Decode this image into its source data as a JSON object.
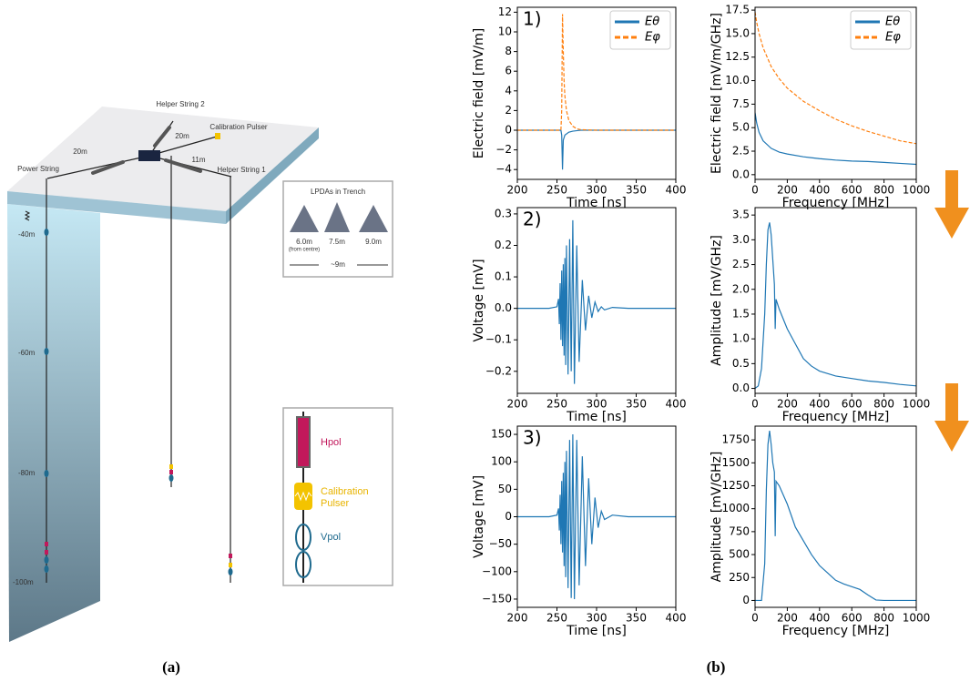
{
  "diagram": {
    "surface_labels": [
      "Helper String 2",
      "Calibration Pulser",
      "20m",
      "20m",
      "11m",
      "Power String",
      "Helper String 1"
    ],
    "depths": [
      "-40m",
      "-60m",
      "-80m",
      "-100m"
    ],
    "lpda_box": {
      "title": "LPDAs in Trench",
      "distances": [
        "6.0m",
        "7.5m",
        "9.0m"
      ],
      "note": "(from centre)",
      "span": "~9m"
    },
    "legend": [
      "Hpol",
      "Calibration",
      "Pulser",
      "Vpol"
    ]
  },
  "captions": [
    "(a)",
    "(b)"
  ],
  "chart_data": [
    {
      "type": "line",
      "annotation": "1)",
      "xlabel": "Time [ns]",
      "ylabel": "Electric field [mV/m]",
      "xlim": [
        200,
        400
      ],
      "xticks": [
        200,
        250,
        300,
        350,
        400
      ],
      "ylim": [
        -5,
        12.5
      ],
      "yticks": [
        {
          "value": -4,
          "label": "−4"
        },
        {
          "value": -2,
          "label": "−2"
        },
        0,
        2,
        4,
        6,
        8,
        10,
        12
      ],
      "legend": "upper right",
      "series": [
        {
          "name": "Eθ",
          "color": "#1f77b4",
          "style": "solid",
          "x": [
            200,
            250,
            255,
            256,
            257,
            258,
            260,
            265,
            270,
            280,
            300,
            400
          ],
          "values": [
            0,
            0,
            0,
            -0.5,
            -4,
            -1,
            -0.5,
            -0.2,
            -0.1,
            0,
            0,
            0
          ]
        },
        {
          "name": "Eφ",
          "color": "#ff7f0e",
          "style": "dashed",
          "x": [
            200,
            250,
            255,
            256,
            257,
            258,
            259,
            260,
            262,
            265,
            270,
            275,
            280,
            300,
            400
          ],
          "values": [
            0,
            0,
            0,
            2,
            11.8,
            8,
            5,
            3.5,
            2,
            1,
            0.4,
            0.15,
            0.05,
            0,
            0
          ]
        }
      ]
    },
    {
      "type": "line",
      "xlabel": "Frequency [MHz]",
      "ylabel": "Electric field [mV/m/GHz]",
      "xlim": [
        0,
        1000
      ],
      "xticks": [
        0,
        200,
        400,
        600,
        800,
        1000
      ],
      "ylim": [
        -0.5,
        17.8
      ],
      "yticks": [
        {
          "value": 0,
          "label": "0.0"
        },
        2.5,
        {
          "value": 5,
          "label": "5.0"
        },
        7.5,
        {
          "value": 10,
          "label": "10.0"
        },
        12.5,
        {
          "value": 15,
          "label": "15.0"
        },
        17.5
      ],
      "legend": "upper right",
      "series": [
        {
          "name": "Eθ",
          "color": "#1f77b4",
          "style": "solid",
          "x": [
            0,
            10,
            25,
            50,
            100,
            150,
            200,
            300,
            400,
            500,
            600,
            700,
            800,
            900,
            1000
          ],
          "values": [
            6.6,
            5.5,
            4.5,
            3.6,
            2.8,
            2.4,
            2.2,
            1.9,
            1.7,
            1.55,
            1.45,
            1.4,
            1.3,
            1.2,
            1.1
          ]
        },
        {
          "name": "Eφ",
          "color": "#ff7f0e",
          "style": "dashed",
          "x": [
            0,
            10,
            25,
            50,
            100,
            150,
            200,
            300,
            400,
            500,
            600,
            700,
            800,
            900,
            1000
          ],
          "values": [
            17.3,
            16.2,
            15,
            13.5,
            11.5,
            10.2,
            9.2,
            7.8,
            6.8,
            5.9,
            5.2,
            4.6,
            4.1,
            3.6,
            3.3
          ]
        }
      ]
    },
    {
      "type": "line",
      "annotation": "2)",
      "xlabel": "Time [ns]",
      "ylabel": "Voltage [mV]",
      "xlim": [
        200,
        400
      ],
      "xticks": [
        200,
        250,
        300,
        350,
        400
      ],
      "ylim": [
        -0.27,
        0.32
      ],
      "yticks": [
        {
          "value": -0.2,
          "label": "−0.2"
        },
        {
          "value": -0.1,
          "label": "−0.1"
        },
        {
          "value": 0,
          "label": "0.0"
        },
        0.1,
        0.2,
        0.3
      ],
      "series": [
        {
          "color": "#1f77b4",
          "style": "solid",
          "x": [
            200,
            240,
            250,
            252,
            253,
            254,
            255,
            256,
            257,
            258,
            259,
            260,
            261,
            262,
            264,
            266,
            268,
            270,
            272,
            275,
            278,
            282,
            286,
            290,
            294,
            298,
            302,
            306,
            310,
            320,
            340,
            400
          ],
          "values": [
            0,
            0,
            0.005,
            0.03,
            -0.05,
            0.08,
            -0.1,
            0.12,
            -0.12,
            0.14,
            -0.15,
            0.16,
            -0.18,
            0.2,
            -0.21,
            0.22,
            -0.2,
            0.28,
            -0.24,
            0.2,
            -0.17,
            0.09,
            -0.07,
            0.04,
            -0.03,
            0.02,
            -0.01,
            0.005,
            -0.005,
            0.003,
            0,
            0
          ]
        }
      ]
    },
    {
      "type": "line",
      "xlabel": "Frequency [MHz]",
      "ylabel": "Amplitude [mV/GHz]",
      "xlim": [
        0,
        1000
      ],
      "xticks": [
        0,
        200,
        400,
        600,
        800,
        1000
      ],
      "ylim": [
        -0.1,
        3.65
      ],
      "yticks": [
        {
          "value": 0,
          "label": "0.0"
        },
        0.5,
        {
          "value": 1,
          "label": "1.0"
        },
        1.5,
        {
          "value": 2,
          "label": "2.0"
        },
        2.5,
        {
          "value": 3,
          "label": "3.0"
        },
        3.5
      ],
      "series": [
        {
          "color": "#1f77b4",
          "style": "solid",
          "x": [
            0,
            20,
            40,
            60,
            70,
            80,
            90,
            100,
            110,
            120,
            125,
            130,
            150,
            200,
            250,
            300,
            350,
            400,
            500,
            600,
            700,
            800,
            900,
            1000
          ],
          "values": [
            0,
            0.05,
            0.4,
            1.5,
            2.5,
            3.2,
            3.35,
            3.1,
            2.6,
            2.1,
            1.2,
            1.8,
            1.6,
            1.2,
            0.9,
            0.6,
            0.45,
            0.35,
            0.25,
            0.2,
            0.15,
            0.12,
            0.08,
            0.05
          ]
        }
      ]
    },
    {
      "type": "line",
      "annotation": "3)",
      "xlabel": "Time [ns]",
      "ylabel": "Voltage [mV]",
      "xlim": [
        200,
        400
      ],
      "xticks": [
        200,
        250,
        300,
        350,
        400
      ],
      "ylim": [
        -165,
        165
      ],
      "yticks": [
        {
          "value": -150,
          "label": "−150"
        },
        {
          "value": -100,
          "label": "−100"
        },
        {
          "value": -50,
          "label": "−50"
        },
        0,
        50,
        100,
        150
      ],
      "series": [
        {
          "color": "#1f77b4",
          "style": "solid",
          "x": [
            200,
            240,
            250,
            252,
            253,
            254,
            255,
            256,
            257,
            258,
            259,
            260,
            261,
            262,
            264,
            266,
            268,
            270,
            272,
            275,
            278,
            282,
            286,
            290,
            294,
            298,
            302,
            306,
            310,
            320,
            340,
            400
          ],
          "values": [
            0,
            0,
            3,
            15,
            -25,
            40,
            -50,
            65,
            -65,
            80,
            -90,
            100,
            -110,
            120,
            -130,
            140,
            -148,
            150,
            -150,
            140,
            -125,
            110,
            -90,
            70,
            -50,
            35,
            -20,
            10,
            -5,
            3,
            0,
            0
          ]
        }
      ]
    },
    {
      "type": "line",
      "xlabel": "Frequency [MHz]",
      "ylabel": "Amplitude [mV/GHz]",
      "xlim": [
        0,
        1000
      ],
      "xticks": [
        0,
        200,
        400,
        600,
        800,
        1000
      ],
      "ylim": [
        -75,
        1900
      ],
      "yticks": [
        0,
        250,
        500,
        750,
        1000,
        1250,
        1500,
        1750
      ],
      "series": [
        {
          "color": "#1f77b4",
          "style": "solid",
          "x": [
            0,
            40,
            60,
            70,
            80,
            90,
            100,
            110,
            120,
            125,
            130,
            150,
            200,
            250,
            300,
            350,
            400,
            450,
            500,
            550,
            600,
            650,
            700,
            750,
            800,
            900,
            1000
          ],
          "values": [
            0,
            0,
            400,
            1200,
            1700,
            1850,
            1700,
            1500,
            1400,
            700,
            1300,
            1250,
            1050,
            800,
            650,
            500,
            380,
            300,
            220,
            180,
            150,
            120,
            60,
            5,
            0,
            0,
            0
          ]
        }
      ]
    }
  ]
}
